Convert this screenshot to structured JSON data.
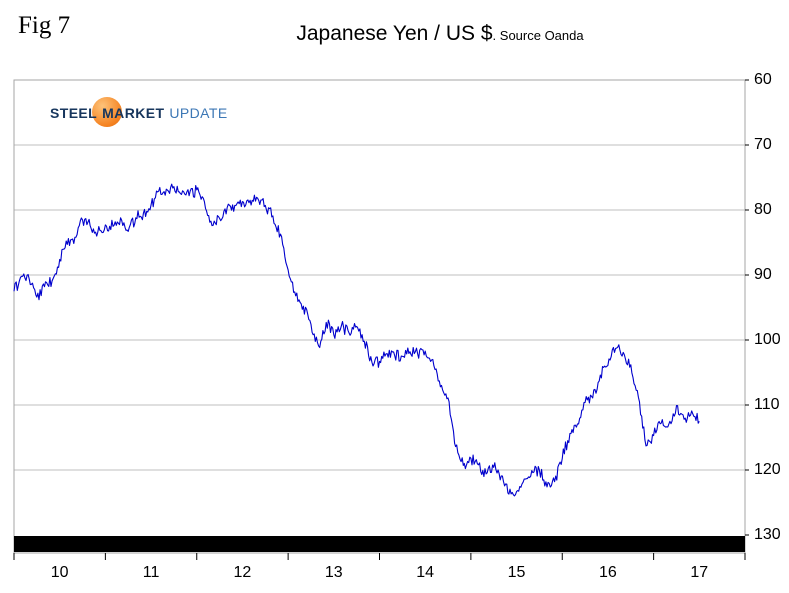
{
  "page": {
    "fig_label": "Fig 7"
  },
  "logo": {
    "steel": "STEEL",
    "market": "MARKET",
    "update": "UPDATE"
  },
  "colors": {
    "line": "#0000CC",
    "grid": "#BFBFBF",
    "plot_border": "#A6A6A6",
    "axis_bar": "#000000",
    "logo_navy": "#17365D",
    "logo_orange": "#F58220",
    "logo_light_blue": "#3C77B5"
  },
  "chart_data": {
    "type": "line",
    "title": "Japanese Yen / US $",
    "source": ". Source Oanda",
    "series_name": "Japanese Yen per US Dollar exchange rate",
    "line_color": "#0000CC",
    "x_start_year": 2010,
    "x_interval": "monthly",
    "values": [
      92.5,
      90.2,
      90.6,
      93.4,
      91.8,
      90.9,
      87.6,
      85.3,
      84.2,
      81.5,
      82.4,
      83.4,
      82.3,
      82.5,
      81.2,
      83.3,
      81.2,
      80.5,
      79.2,
      77.1,
      76.8,
      76.4,
      77.6,
      77.8,
      76.9,
      78.7,
      82.4,
      81.3,
      79.6,
      79.3,
      78.7,
      78.5,
      78.2,
      79.3,
      80.9,
      83.7,
      89.2,
      93.2,
      94.8,
      97.6,
      100.9,
      97.3,
      99.2,
      97.8,
      98.9,
      97.9,
      100.2,
      103.4,
      103.3,
      102.1,
      102.4,
      102.5,
      101.8,
      102.1,
      101.7,
      103.0,
      107.2,
      108.9,
      116.4,
      119.3,
      118.2,
      119.2,
      120.6,
      119.6,
      120.9,
      123.7,
      123.3,
      121.4,
      120.1,
      120.0,
      122.6,
      121.8,
      118.2,
      114.4,
      112.9,
      109.6,
      108.9,
      105.4,
      103.9,
      101.3,
      101.9,
      103.8,
      108.8,
      116.3,
      114.7,
      112.8,
      112.9,
      110.1,
      112.2,
      110.9,
      112.5
    ],
    "x_axis": {
      "range": [
        2010,
        2018
      ],
      "tick_labels": [
        "10",
        "11",
        "12",
        "13",
        "14",
        "15",
        "16",
        "17"
      ]
    },
    "y_axis": {
      "range": [
        60,
        130
      ],
      "ticks": [
        60,
        70,
        80,
        90,
        100,
        110,
        120,
        130
      ],
      "inverted": true,
      "side": "right"
    },
    "grid": "horizontal",
    "legend": "none",
    "style": {
      "jitter_amplitude": 0.9
    }
  }
}
